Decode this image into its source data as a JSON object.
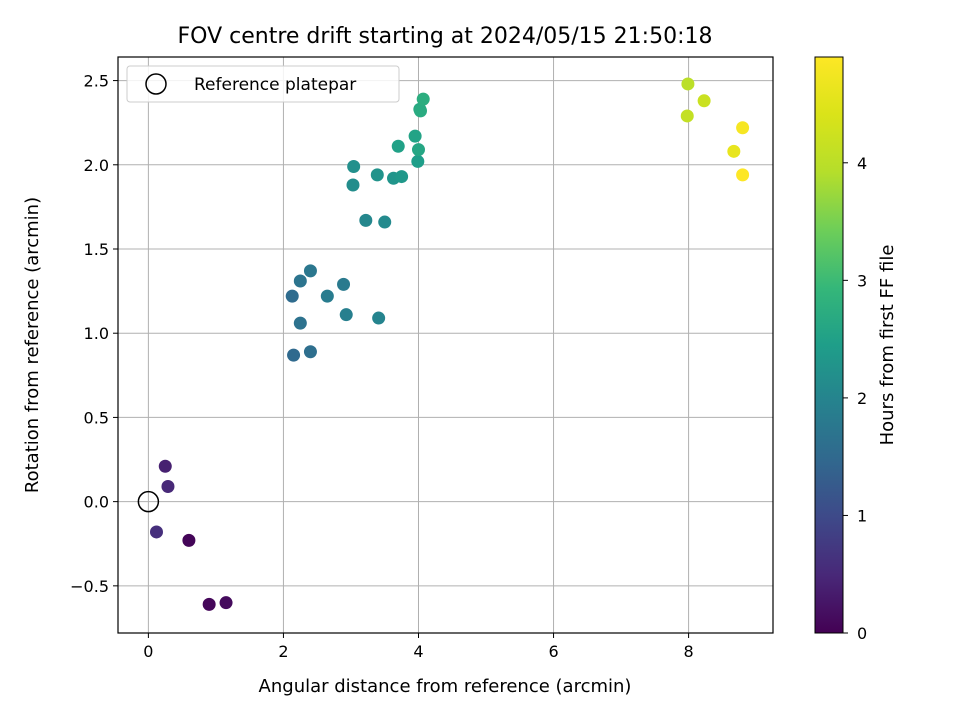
{
  "chart_data": {
    "type": "scatter",
    "title": "FOV centre drift starting at 2024/05/15 21:50:18",
    "xlabel": "Angular distance from reference (arcmin)",
    "ylabel": "Rotation from reference (arcmin)",
    "xlim": [
      -0.45,
      9.25
    ],
    "ylim": [
      -0.78,
      2.64
    ],
    "xticks": [
      0,
      2,
      4,
      6,
      8
    ],
    "xtick_labels": [
      "0",
      "2",
      "4",
      "6",
      "8"
    ],
    "yticks": [
      -0.5,
      0.0,
      0.5,
      1.0,
      1.5,
      2.0,
      2.5
    ],
    "ytick_labels": [
      "−0.5",
      "0.0",
      "0.5",
      "1.0",
      "1.5",
      "2.0",
      "2.5"
    ],
    "grid": true,
    "legend": {
      "position": "top-left",
      "entries": [
        "Reference platepar"
      ]
    },
    "reference_point": {
      "x": 0.0,
      "y": 0.0,
      "label": "Reference platepar"
    },
    "colorbar": {
      "label": "Hours from first FF file",
      "range": [
        0,
        4.9
      ],
      "ticks": [
        0,
        1,
        2,
        3,
        4
      ],
      "tick_labels": [
        "0",
        "1",
        "2",
        "3",
        "4"
      ],
      "colormap": "viridis"
    },
    "points": [
      {
        "x": 0.6,
        "y": -0.23,
        "c": 0.05
      },
      {
        "x": 0.9,
        "y": -0.61,
        "c": 0.08
      },
      {
        "x": 1.15,
        "y": -0.6,
        "c": 0.12
      },
      {
        "x": 0.12,
        "y": -0.18,
        "c": 0.6
      },
      {
        "x": 0.29,
        "y": 0.09,
        "c": 0.5
      },
      {
        "x": 0.25,
        "y": 0.21,
        "c": 0.4
      },
      {
        "x": 2.15,
        "y": 0.87,
        "c": 1.5
      },
      {
        "x": 2.4,
        "y": 0.89,
        "c": 1.6
      },
      {
        "x": 2.13,
        "y": 1.22,
        "c": 1.55
      },
      {
        "x": 2.25,
        "y": 1.06,
        "c": 1.65
      },
      {
        "x": 2.25,
        "y": 1.31,
        "c": 1.7
      },
      {
        "x": 2.4,
        "y": 1.37,
        "c": 1.75
      },
      {
        "x": 2.65,
        "y": 1.22,
        "c": 1.85
      },
      {
        "x": 2.89,
        "y": 1.29,
        "c": 1.8
      },
      {
        "x": 2.93,
        "y": 1.11,
        "c": 1.9
      },
      {
        "x": 3.41,
        "y": 1.09,
        "c": 2.0
      },
      {
        "x": 3.22,
        "y": 1.67,
        "c": 2.05
      },
      {
        "x": 3.5,
        "y": 1.66,
        "c": 2.1
      },
      {
        "x": 3.03,
        "y": 1.88,
        "c": 2.15
      },
      {
        "x": 3.04,
        "y": 1.99,
        "c": 2.2
      },
      {
        "x": 3.39,
        "y": 1.94,
        "c": 2.25
      },
      {
        "x": 3.63,
        "y": 1.92,
        "c": 2.3
      },
      {
        "x": 3.75,
        "y": 1.93,
        "c": 2.35
      },
      {
        "x": 3.99,
        "y": 2.02,
        "c": 2.45
      },
      {
        "x": 3.7,
        "y": 2.11,
        "c": 2.5
      },
      {
        "x": 3.95,
        "y": 2.17,
        "c": 2.55
      },
      {
        "x": 4.0,
        "y": 2.09,
        "c": 2.6
      },
      {
        "x": 4.02,
        "y": 2.33,
        "c": 2.65
      },
      {
        "x": 4.03,
        "y": 2.32,
        "c": 2.7
      },
      {
        "x": 4.07,
        "y": 2.39,
        "c": 2.75
      },
      {
        "x": 7.99,
        "y": 2.48,
        "c": 4.0
      },
      {
        "x": 7.98,
        "y": 2.29,
        "c": 4.1
      },
      {
        "x": 8.23,
        "y": 2.38,
        "c": 4.2
      },
      {
        "x": 8.67,
        "y": 2.08,
        "c": 4.6
      },
      {
        "x": 8.8,
        "y": 2.22,
        "c": 4.8
      },
      {
        "x": 8.8,
        "y": 1.94,
        "c": 4.9
      }
    ]
  }
}
